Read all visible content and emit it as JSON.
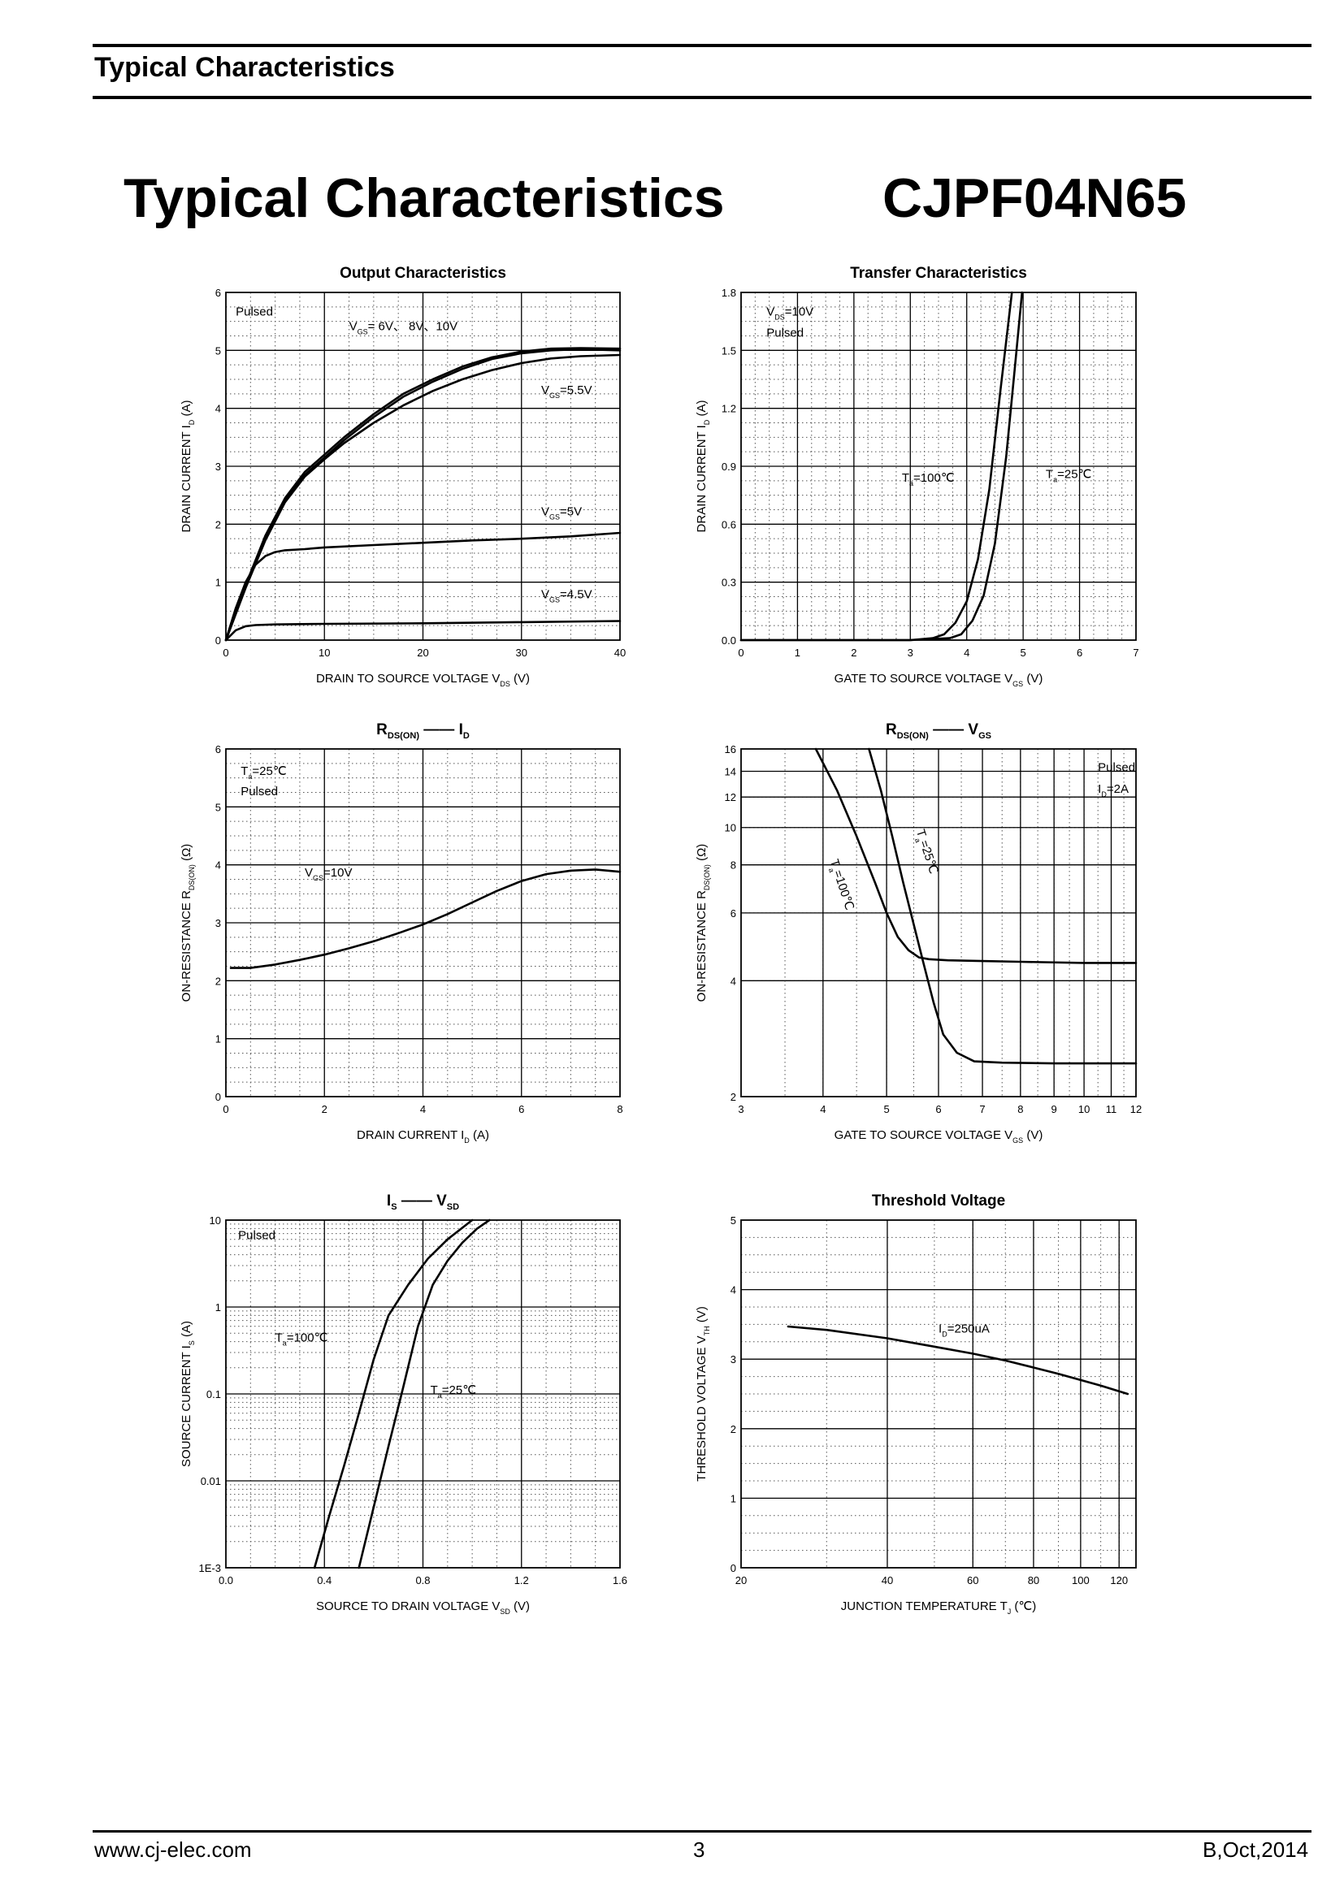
{
  "header": {
    "title": "Typical Characteristics"
  },
  "main": {
    "title": "Typical Characteristics",
    "part_number": "CJPF04N65"
  },
  "footer": {
    "website": "www.cj-elec.com",
    "page": "3",
    "revision": "B,Oct,2014"
  },
  "chart_data": [
    {
      "id": "output",
      "type": "line",
      "title": "Output Characteristics",
      "xlabel": "DRAIN TO SOURCE VOLTAGE",
      "xsym": "V",
      "xsub": "DS",
      "xunit": "(V)",
      "ylabel": "DRAIN CURRENT",
      "ysym": "I",
      "ysub": "D",
      "yunit": "(A)",
      "xlim": [
        0,
        40
      ],
      "ylim": [
        0,
        6
      ],
      "x_ticks": [
        0,
        10,
        20,
        30,
        40
      ],
      "y_ticks": [
        0,
        1,
        2,
        3,
        4,
        5,
        6
      ],
      "annotations": [
        {
          "text": "Pulsed",
          "x": 1,
          "y": 5.6
        },
        {
          "sym": "V",
          "sub": "GS",
          "text": "= 6V、 8V、10V",
          "x": 12.5,
          "y": 5.35
        },
        {
          "sym": "V",
          "sub": "GS",
          "text": "=5.5V",
          "x": 32,
          "y": 4.25
        },
        {
          "sym": "V",
          "sub": "GS",
          "text": "=5V",
          "x": 32,
          "y": 2.15
        },
        {
          "sym": "V",
          "sub": "GS",
          "text": "=4.5V",
          "x": 32,
          "y": 0.72
        }
      ],
      "series": [
        {
          "x": [
            0,
            2,
            4,
            6,
            8,
            10,
            12,
            15,
            18,
            21,
            24,
            27,
            30,
            33,
            36,
            40
          ],
          "y": [
            0,
            0.95,
            1.8,
            2.45,
            2.9,
            3.2,
            3.5,
            3.9,
            4.25,
            4.5,
            4.72,
            4.88,
            4.98,
            5.03,
            5.04,
            5.03
          ]
        },
        {
          "x": [
            0,
            2,
            4,
            6,
            8,
            10,
            12,
            15,
            18,
            21,
            24,
            27,
            30,
            33,
            36,
            40
          ],
          "y": [
            0,
            0.92,
            1.75,
            2.4,
            2.85,
            3.15,
            3.45,
            3.85,
            4.2,
            4.46,
            4.68,
            4.85,
            4.95,
            5.0,
            5.02,
            5.0
          ]
        },
        {
          "x": [
            0,
            2,
            4,
            6,
            8,
            10,
            12,
            15,
            18,
            21,
            24,
            27,
            30,
            33,
            36,
            40
          ],
          "y": [
            0,
            0.9,
            1.72,
            2.38,
            2.82,
            3.12,
            3.4,
            3.75,
            4.05,
            4.3,
            4.5,
            4.66,
            4.78,
            4.86,
            4.9,
            4.92
          ]
        },
        {
          "x": [
            0,
            1,
            2,
            3,
            4,
            5,
            6,
            8,
            10,
            15,
            20,
            25,
            30,
            35,
            40
          ],
          "y": [
            0,
            0.55,
            1.0,
            1.3,
            1.45,
            1.52,
            1.55,
            1.57,
            1.6,
            1.64,
            1.68,
            1.72,
            1.75,
            1.79,
            1.85
          ]
        },
        {
          "x": [
            0,
            1,
            2,
            3,
            5,
            10,
            20,
            30,
            40
          ],
          "y": [
            0,
            0.17,
            0.24,
            0.26,
            0.27,
            0.28,
            0.29,
            0.31,
            0.33
          ]
        }
      ]
    },
    {
      "id": "transfer",
      "type": "line",
      "title": "Transfer Characteristics",
      "xlabel": "GATE TO SOURCE VOLTAGE",
      "xsym": "V",
      "xsub": "GS",
      "xunit": "(V)",
      "ylabel": "DRAIN CURRENT",
      "ysym": "I",
      "ysub": "D",
      "yunit": "(A)",
      "xlim": [
        0,
        7
      ],
      "ylim": [
        0,
        1.8
      ],
      "x_ticks": [
        0,
        1,
        2,
        3,
        4,
        5,
        6,
        7
      ],
      "y_ticks": [
        0.0,
        0.3,
        0.6,
        0.9,
        1.2,
        1.5,
        1.8
      ],
      "y_tick_labels": [
        "0.0",
        "0.3",
        "0.6",
        "0.9",
        "1.2",
        "1.5",
        "1.8"
      ],
      "annotations": [
        {
          "sym": "V",
          "sub": "DS",
          "text": "=10V",
          "x": 0.45,
          "y": 1.68
        },
        {
          "text": "Pulsed",
          "x": 0.45,
          "y": 1.57
        },
        {
          "sym": "T",
          "sub": "a",
          "text": "=100℃",
          "x": 2.85,
          "y": 0.82
        },
        {
          "sym": "T",
          "sub": "a",
          "text": "=25℃",
          "x": 5.4,
          "y": 0.84
        }
      ],
      "series": [
        {
          "x": [
            0,
            1,
            2,
            3,
            3.4,
            3.6,
            3.8,
            4.0,
            4.2,
            4.4,
            4.6,
            4.8
          ],
          "y": [
            0,
            0,
            0,
            0,
            0.01,
            0.03,
            0.09,
            0.2,
            0.42,
            0.78,
            1.3,
            1.8
          ]
        },
        {
          "x": [
            0,
            1,
            2,
            3,
            3.7,
            3.9,
            4.1,
            4.3,
            4.5,
            4.7,
            4.85,
            4.98
          ],
          "y": [
            0,
            0,
            0,
            0,
            0.01,
            0.03,
            0.1,
            0.23,
            0.5,
            0.95,
            1.4,
            1.8
          ]
        }
      ]
    },
    {
      "id": "rds_id",
      "type": "line",
      "title_sym": "R",
      "title_sub": "DS(ON)",
      "title_sym2": "I",
      "title_sub2": "D",
      "xlabel": "DRAIN CURRENT",
      "xsym": "I",
      "xsub": "D",
      "xunit": "(A)",
      "ylabel": "ON-RESISTANCE",
      "ysym": "R",
      "ysub": "DS(ON)",
      "yunit": "(Ω)",
      "xlim": [
        0,
        8
      ],
      "ylim": [
        0,
        6
      ],
      "x_ticks": [
        0,
        2,
        4,
        6,
        8
      ],
      "y_ticks": [
        1,
        2,
        3,
        4,
        5,
        6
      ],
      "annotations": [
        {
          "sym": "T",
          "sub": "a",
          "text": "=25℃",
          "x": 0.3,
          "y": 5.55
        },
        {
          "text": "Pulsed",
          "x": 0.3,
          "y": 5.2
        },
        {
          "sym": "V",
          "sub": "GS",
          "text": "=10V",
          "x": 1.6,
          "y": 3.8
        }
      ],
      "series": [
        {
          "x": [
            0.1,
            0.5,
            1,
            1.5,
            2,
            2.5,
            3,
            3.5,
            4,
            4.5,
            5,
            5.5,
            6,
            6.5,
            7,
            7.5,
            8
          ],
          "y": [
            2.22,
            2.22,
            2.28,
            2.36,
            2.45,
            2.56,
            2.68,
            2.82,
            2.97,
            3.15,
            3.35,
            3.55,
            3.72,
            3.84,
            3.9,
            3.92,
            3.88
          ]
        }
      ]
    },
    {
      "id": "rds_vgs",
      "type": "line",
      "title_sym": "R",
      "title_sub": "DS(ON)",
      "title_sym2": "V",
      "title_sub2": "GS",
      "xlabel": "GATE TO SOURCE VOLTAGE",
      "xsym": "V",
      "xsub": "GS",
      "xunit": "(V)",
      "ylabel": "ON-RESISTANCE",
      "ysym": "R",
      "ysub": "DS(ON)",
      "yunit": "(Ω)",
      "xscale": "log",
      "yscale": "log",
      "xlim": [
        3,
        12
      ],
      "ylim": [
        2,
        16
      ],
      "x_ticks": [
        3,
        4,
        5,
        6,
        7,
        8,
        9,
        10,
        11,
        12
      ],
      "y_ticks": [
        2,
        4,
        6,
        8,
        10,
        12,
        14,
        16
      ],
      "annotations": [
        {
          "text": "Pulsed",
          "x": 10.5,
          "y": 14.0
        },
        {
          "sym": "I",
          "sub": "D",
          "text": "=2A",
          "x": 10.5,
          "y": 12.3
        }
      ],
      "rotated_labels": [
        {
          "sym": "T",
          "sub": "a",
          "text": "=100℃",
          "x": 4.1,
          "y": 8.2
        },
        {
          "sym": "T",
          "sub": "a",
          "text": "=25℃",
          "x": 5.55,
          "y": 9.8
        }
      ],
      "series": [
        {
          "x": [
            3.9,
            4.2,
            4.5,
            4.8,
            5.0,
            5.2,
            5.4,
            5.6,
            5.8,
            6.2,
            7,
            8,
            10,
            12
          ],
          "y": [
            16,
            12.5,
            9.5,
            7.2,
            6.0,
            5.2,
            4.8,
            4.6,
            4.55,
            4.52,
            4.5,
            4.48,
            4.45,
            4.45
          ]
        },
        {
          "x": [
            4.7,
            4.9,
            5.1,
            5.3,
            5.5,
            5.7,
            5.9,
            6.1,
            6.4,
            6.8,
            7.5,
            9,
            12
          ],
          "y": [
            16,
            12.5,
            9.5,
            7.2,
            5.6,
            4.4,
            3.5,
            2.9,
            2.6,
            2.47,
            2.45,
            2.44,
            2.44
          ]
        }
      ]
    },
    {
      "id": "is_vsd",
      "type": "line",
      "title_sym": "I",
      "title_sub": "S",
      "title_sym2": "V",
      "title_sub2": "SD",
      "xlabel": "SOURCE TO DRAIN VOLTAGE",
      "xsym": "V",
      "xsub": "SD",
      "xunit": "(V)",
      "ylabel": "SOURCE CURRENT",
      "ysym": "I",
      "ysub": "S",
      "yunit": "(A)",
      "yscale": "log",
      "xlim": [
        0,
        1.6
      ],
      "ylim": [
        0.001,
        10
      ],
      "x_ticks": [
        0,
        0.4,
        0.8,
        1.2,
        1.6
      ],
      "x_tick_labels": [
        "0.0",
        "0.4",
        "0.8",
        "1.2",
        "1.6"
      ],
      "y_ticks": [
        0.001,
        0.01,
        0.1,
        1,
        10
      ],
      "y_tick_labels": [
        "1E-3",
        "0.01",
        "0.1",
        "1",
        "10"
      ],
      "annotations": [
        {
          "text": "Pulsed",
          "x": 0.05,
          "y": 6.0
        },
        {
          "sym": "T",
          "sub": "a",
          "text": "=100℃",
          "x": 0.2,
          "y": 0.4
        },
        {
          "sym": "T",
          "sub": "a",
          "text": "=25℃",
          "x": 0.83,
          "y": 0.1
        }
      ],
      "series": [
        {
          "x": [
            0.36,
            0.42,
            0.48,
            0.54,
            0.6,
            0.66,
            0.74,
            0.82,
            0.9,
            1.0
          ],
          "y": [
            0.001,
            0.004,
            0.015,
            0.06,
            0.25,
            0.8,
            1.8,
            3.6,
            6.0,
            10
          ]
        },
        {
          "x": [
            0.54,
            0.6,
            0.66,
            0.72,
            0.78,
            0.84,
            0.9,
            0.96,
            1.02,
            1.07
          ],
          "y": [
            0.001,
            0.005,
            0.025,
            0.12,
            0.6,
            1.8,
            3.4,
            5.5,
            8.0,
            10
          ]
        }
      ]
    },
    {
      "id": "threshold",
      "type": "line",
      "title": "Threshold Voltage",
      "xlabel": "JUNCTION TEMPERATURE",
      "xsym": "T",
      "xsub": "J",
      "xunit": "(℃)",
      "ylabel": "THRESHOLD VOLTAGE",
      "ysym": "V",
      "ysub": "TH",
      "yunit": "(V)",
      "xscale": "log",
      "xlim": [
        20,
        130
      ],
      "ylim": [
        0,
        5
      ],
      "x_ticks": [
        20,
        40,
        60,
        80,
        100,
        120
      ],
      "y_ticks": [
        1,
        2,
        3,
        4,
        5
      ],
      "annotations": [
        {
          "sym": "I",
          "sub": "D",
          "text": "=250uA",
          "x": 51,
          "y": 3.38
        }
      ],
      "series": [
        {
          "x": [
            25,
            30,
            40,
            50,
            60,
            70,
            80,
            90,
            100,
            110,
            125
          ],
          "y": [
            3.47,
            3.42,
            3.3,
            3.18,
            3.08,
            2.98,
            2.88,
            2.79,
            2.7,
            2.62,
            2.5
          ]
        }
      ]
    }
  ]
}
